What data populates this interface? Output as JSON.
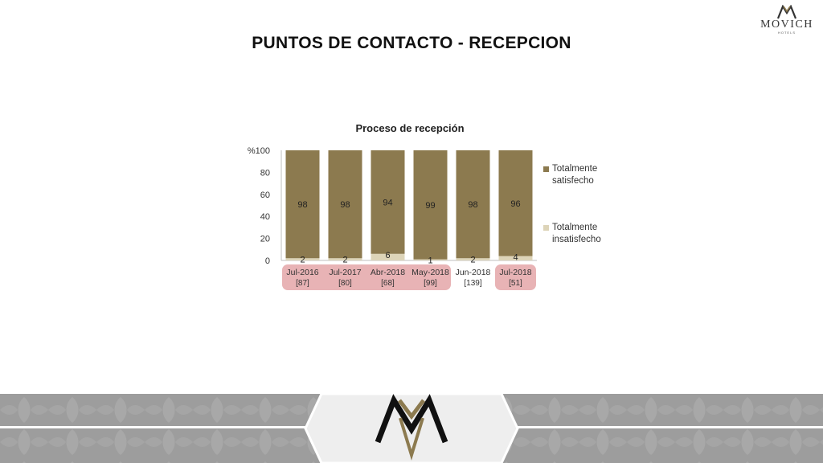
{
  "brand": {
    "name": "MOVICH",
    "sub": "HOTELS"
  },
  "page": {
    "title": "PUNTOS DE CONTACTO - RECEPCION"
  },
  "colors": {
    "satisfied": "#8c7a4f",
    "dissatisfied": "#ddd4b8",
    "highlight": "#e8b3b5",
    "footer_band": "#9a9a9a"
  },
  "chart_data": {
    "type": "bar",
    "stacked": true,
    "title": "Proceso de recepción",
    "ylabel": "%",
    "ylim": [
      0,
      100
    ],
    "yticks": [
      0,
      20,
      40,
      60,
      80,
      100
    ],
    "yticks_labels": [
      "0",
      "20",
      "40",
      "60",
      "80",
      "%100"
    ],
    "categories": [
      "Jul-2016",
      "Jul-2017",
      "Abr-2018",
      "May-2018",
      "Jun-2018",
      "Jul-2018"
    ],
    "sample_sizes": [
      "[87]",
      "[80]",
      "[68]",
      "[99]",
      "[139]",
      "[51]"
    ],
    "highlighted": [
      true,
      true,
      true,
      true,
      false,
      true
    ],
    "series": [
      {
        "name": "Totalmente insatisfecho",
        "values": [
          2,
          2,
          6,
          1,
          2,
          4
        ]
      },
      {
        "name": "Totalmente satisfecho",
        "values": [
          98,
          98,
          94,
          99,
          98,
          96
        ]
      }
    ],
    "legend_position": "right",
    "grid": false
  }
}
